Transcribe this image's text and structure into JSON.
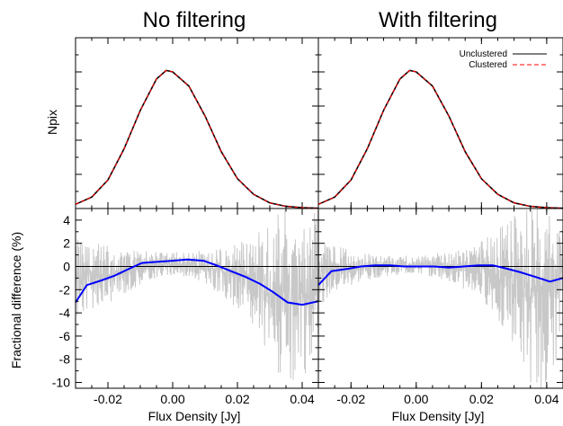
{
  "chart_data": [
    {
      "type": "line",
      "panel": "top-left",
      "title": "No filtering",
      "ylabel": "Npix",
      "xlim": [
        -0.03,
        0.045
      ],
      "y_scale": "relative",
      "series": [
        {
          "name": "Unclustered",
          "color": "#000000",
          "x": [
            -0.03,
            -0.025,
            -0.02,
            -0.015,
            -0.01,
            -0.005,
            -0.002,
            0.0,
            0.005,
            0.01,
            0.015,
            0.02,
            0.025,
            0.03,
            0.035,
            0.04,
            0.045
          ],
          "y": [
            0.03,
            0.08,
            0.2,
            0.42,
            0.69,
            0.91,
            0.97,
            0.96,
            0.86,
            0.65,
            0.4,
            0.21,
            0.1,
            0.04,
            0.015,
            0.006,
            0.002
          ]
        },
        {
          "name": "Clustered",
          "color": "#ff0000",
          "x": [
            -0.03,
            -0.025,
            -0.02,
            -0.015,
            -0.01,
            -0.005,
            -0.002,
            0.0,
            0.005,
            0.01,
            0.015,
            0.02,
            0.025,
            0.03,
            0.035,
            0.04,
            0.045
          ],
          "y": [
            0.03,
            0.08,
            0.2,
            0.42,
            0.69,
            0.91,
            0.97,
            0.96,
            0.86,
            0.65,
            0.4,
            0.21,
            0.1,
            0.04,
            0.015,
            0.006,
            0.002
          ]
        }
      ]
    },
    {
      "type": "line",
      "panel": "top-right",
      "title": "With filtering",
      "xlim": [
        -0.03,
        0.045
      ],
      "y_scale": "relative",
      "legend_position": "top-right",
      "series": [
        {
          "name": "Unclustered",
          "color": "#000000",
          "x": [
            -0.03,
            -0.025,
            -0.02,
            -0.015,
            -0.01,
            -0.005,
            -0.002,
            0.0,
            0.005,
            0.01,
            0.015,
            0.02,
            0.025,
            0.03,
            0.035,
            0.04,
            0.045
          ],
          "y": [
            0.03,
            0.08,
            0.2,
            0.42,
            0.69,
            0.91,
            0.97,
            0.96,
            0.86,
            0.65,
            0.4,
            0.21,
            0.1,
            0.04,
            0.015,
            0.006,
            0.002
          ]
        },
        {
          "name": "Clustered",
          "color": "#ff0000",
          "x": [
            -0.03,
            -0.025,
            -0.02,
            -0.015,
            -0.01,
            -0.005,
            -0.002,
            0.0,
            0.005,
            0.01,
            0.015,
            0.02,
            0.025,
            0.03,
            0.035,
            0.04,
            0.045
          ],
          "y": [
            0.03,
            0.08,
            0.2,
            0.42,
            0.69,
            0.91,
            0.97,
            0.96,
            0.86,
            0.65,
            0.4,
            0.21,
            0.1,
            0.04,
            0.015,
            0.006,
            0.002
          ]
        }
      ]
    },
    {
      "type": "line",
      "panel": "bottom-left",
      "xlabel": "Flux Density [Jy]",
      "ylabel": "Fractional difference (%)",
      "xlim": [
        -0.03,
        0.045
      ],
      "ylim": [
        -10.5,
        5
      ],
      "x_ticks": [
        -0.02,
        0.0,
        0.02,
        0.04
      ],
      "x_tick_labels": [
        "-0.02",
        "0.00",
        "0.02",
        "0.04"
      ],
      "y_ticks": [
        4,
        2,
        0,
        -2,
        -4,
        -6,
        -8,
        -10
      ],
      "y_tick_labels": [
        "4",
        "2",
        "0",
        "-2",
        "-4",
        "-6",
        "-8",
        "-10"
      ],
      "reference_line": 0,
      "noise_envelope": {
        "color": "#c8c8c8",
        "x": [
          -0.03,
          -0.025,
          -0.02,
          -0.015,
          -0.01,
          -0.005,
          0.0,
          0.005,
          0.01,
          0.015,
          0.02,
          0.025,
          0.03,
          0.035,
          0.04,
          0.045
        ],
        "hi": [
          3.0,
          2.2,
          1.8,
          1.6,
          1.4,
          1.3,
          1.3,
          1.3,
          1.4,
          1.6,
          2.0,
          2.8,
          4.0,
          5.0,
          5.0,
          5.0
        ],
        "lo": [
          -4.5,
          -3.8,
          -3.2,
          -2.4,
          -1.6,
          -1.0,
          -0.8,
          -0.9,
          -1.5,
          -2.5,
          -3.8,
          -5.5,
          -8.0,
          -10.5,
          -10.5,
          -6.0
        ]
      },
      "series": [
        {
          "color": "#0000ff",
          "x": [
            -0.03,
            -0.0265,
            -0.022,
            -0.018,
            -0.0135,
            -0.0095,
            -0.005,
            0.0,
            0.0045,
            0.0095,
            0.0135,
            0.018,
            0.0225,
            0.027,
            0.031,
            0.0355,
            0.04,
            0.045
          ],
          "y": [
            -3.1,
            -1.6,
            -1.2,
            -0.8,
            -0.2,
            0.3,
            0.4,
            0.5,
            0.6,
            0.5,
            0.1,
            -0.4,
            -0.9,
            -1.5,
            -2.2,
            -3.1,
            -3.3,
            -3.0
          ]
        }
      ]
    },
    {
      "type": "line",
      "panel": "bottom-right",
      "xlabel": "Flux Density [Jy]",
      "xlim": [
        -0.03,
        0.045
      ],
      "ylim": [
        -10.5,
        5
      ],
      "x_ticks": [
        -0.02,
        0.0,
        0.02,
        0.04
      ],
      "x_tick_labels": [
        "-0.02",
        "0.00",
        "0.02",
        "0.04"
      ],
      "reference_line": 0,
      "noise_envelope": {
        "color": "#c8c8c8",
        "x": [
          -0.03,
          -0.025,
          -0.02,
          -0.015,
          -0.01,
          -0.005,
          0.0,
          0.005,
          0.01,
          0.015,
          0.02,
          0.025,
          0.03,
          0.035,
          0.04,
          0.045
        ],
        "hi": [
          2.5,
          1.8,
          1.4,
          1.2,
          1.0,
          0.9,
          1.0,
          1.1,
          1.3,
          1.6,
          2.2,
          3.2,
          4.5,
          5.0,
          5.0,
          5.0
        ],
        "lo": [
          -3.5,
          -2.5,
          -1.8,
          -1.2,
          -0.9,
          -0.7,
          -0.7,
          -0.9,
          -1.3,
          -2.0,
          -3.0,
          -4.5,
          -7.0,
          -10.5,
          -10.5,
          -7.0
        ]
      },
      "series": [
        {
          "color": "#0000ff",
          "x": [
            -0.03,
            -0.026,
            -0.021,
            -0.017,
            -0.0125,
            -0.008,
            -0.0035,
            0.001,
            0.0055,
            0.01,
            0.0145,
            0.019,
            0.0235,
            0.028,
            0.032,
            0.0365,
            0.041,
            0.045
          ],
          "y": [
            -1.6,
            -0.4,
            -0.2,
            0.0,
            0.1,
            0.1,
            0.0,
            0.0,
            0.0,
            -0.1,
            0.0,
            0.1,
            0.1,
            -0.2,
            -0.5,
            -0.9,
            -1.3,
            -1.0
          ]
        }
      ]
    }
  ]
}
